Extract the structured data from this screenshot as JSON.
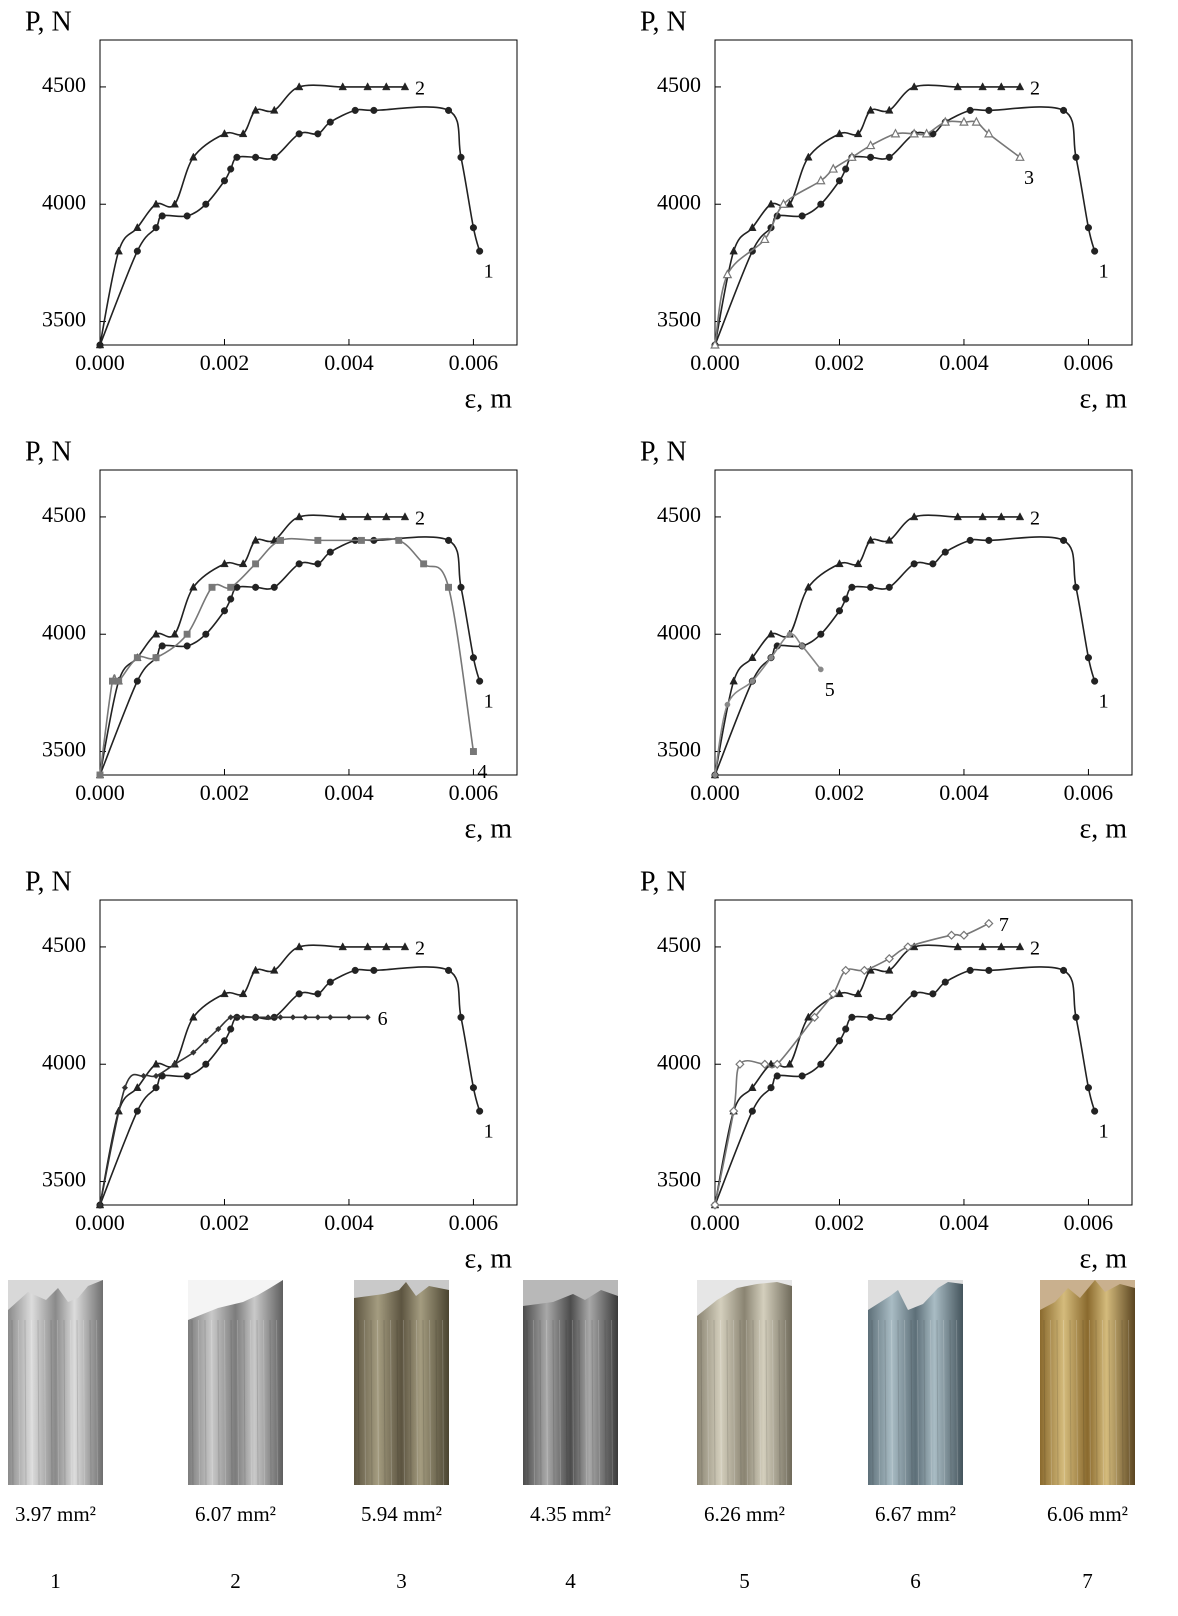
{
  "chart_data": [
    {
      "type": "line",
      "y_label": "P, N",
      "x_label": "ε, m",
      "xlim": [
        0,
        0.0067
      ],
      "xticks": [
        {
          "value": 0,
          "label": "0.000"
        },
        0.002,
        0.004,
        0.006
      ],
      "ylim": [
        3400,
        4700
      ],
      "yticks": [
        3500,
        4000,
        4500
      ],
      "series": [
        {
          "name": "1",
          "color": "#222",
          "marker": "circle",
          "x": [
            0,
            0.0006,
            0.0009,
            0.001,
            0.0014,
            0.0017,
            0.002,
            0.0021,
            0.0022,
            0.0025,
            0.0028,
            0.0032,
            0.0035,
            0.0037,
            0.0041,
            0.0044,
            0.0056,
            0.0058,
            0.006,
            0.0061
          ],
          "values": [
            3400,
            3800,
            3900,
            3950,
            3950,
            4000,
            4100,
            4150,
            4200,
            4200,
            4200,
            4300,
            4300,
            4350,
            4400,
            4400,
            4400,
            4200,
            3900,
            3800
          ]
        },
        {
          "name": "2",
          "color": "#222",
          "marker": "triangle",
          "x": [
            0,
            0.0003,
            0.0006,
            0.0009,
            0.0012,
            0.0015,
            0.002,
            0.0023,
            0.0025,
            0.0028,
            0.0032,
            0.0039,
            0.0043,
            0.0046,
            0.0049
          ],
          "values": [
            3400,
            3800,
            3900,
            4000,
            4000,
            4200,
            4300,
            4300,
            4400,
            4400,
            4500,
            4500,
            4500,
            4500,
            4500
          ]
        }
      ]
    },
    {
      "type": "line",
      "y_label": "P, N",
      "x_label": "ε, m",
      "xlim": [
        0,
        0.0067
      ],
      "xticks": [
        {
          "value": 0,
          "label": "0.000"
        },
        0.002,
        0.004,
        0.006
      ],
      "ylim": [
        3400,
        4700
      ],
      "yticks": [
        3500,
        4000,
        4500
      ],
      "series": [
        {
          "name": "1",
          "color": "#222",
          "marker": "circle",
          "x": [
            0,
            0.0006,
            0.0009,
            0.001,
            0.0014,
            0.0017,
            0.002,
            0.0021,
            0.0022,
            0.0025,
            0.0028,
            0.0032,
            0.0035,
            0.0037,
            0.0041,
            0.0044,
            0.0056,
            0.0058,
            0.006,
            0.0061
          ],
          "values": [
            3400,
            3800,
            3900,
            3950,
            3950,
            4000,
            4100,
            4150,
            4200,
            4200,
            4200,
            4300,
            4300,
            4350,
            4400,
            4400,
            4400,
            4200,
            3900,
            3800
          ]
        },
        {
          "name": "2",
          "color": "#222",
          "marker": "triangle",
          "x": [
            0,
            0.0003,
            0.0006,
            0.0009,
            0.0012,
            0.0015,
            0.002,
            0.0023,
            0.0025,
            0.0028,
            0.0032,
            0.0039,
            0.0043,
            0.0046,
            0.0049
          ],
          "values": [
            3400,
            3800,
            3900,
            4000,
            4000,
            4200,
            4300,
            4300,
            4400,
            4400,
            4500,
            4500,
            4500,
            4500,
            4500
          ]
        },
        {
          "name": "3",
          "color": "#777",
          "marker": "triangle-open",
          "x": [
            0,
            0.0002,
            0.0008,
            0.0011,
            0.0017,
            0.0019,
            0.0022,
            0.0025,
            0.0029,
            0.0032,
            0.0034,
            0.0037,
            0.004,
            0.0042,
            0.0044,
            0.0049
          ],
          "values": [
            3400,
            3700,
            3850,
            4000,
            4100,
            4150,
            4200,
            4250,
            4300,
            4300,
            4300,
            4350,
            4350,
            4350,
            4300,
            4200
          ]
        }
      ]
    },
    {
      "type": "line",
      "y_label": "P, N",
      "x_label": "ε, m",
      "xlim": [
        0,
        0.0067
      ],
      "xticks": [
        {
          "value": 0,
          "label": "0.000"
        },
        0.002,
        0.004,
        0.006
      ],
      "ylim": [
        3400,
        4700
      ],
      "yticks": [
        3500,
        4000,
        4500
      ],
      "series": [
        {
          "name": "1",
          "color": "#222",
          "marker": "circle",
          "x": [
            0,
            0.0006,
            0.0009,
            0.001,
            0.0014,
            0.0017,
            0.002,
            0.0021,
            0.0022,
            0.0025,
            0.0028,
            0.0032,
            0.0035,
            0.0037,
            0.0041,
            0.0044,
            0.0056,
            0.0058,
            0.006,
            0.0061
          ],
          "values": [
            3400,
            3800,
            3900,
            3950,
            3950,
            4000,
            4100,
            4150,
            4200,
            4200,
            4200,
            4300,
            4300,
            4350,
            4400,
            4400,
            4400,
            4200,
            3900,
            3800
          ]
        },
        {
          "name": "2",
          "color": "#222",
          "marker": "triangle",
          "x": [
            0,
            0.0003,
            0.0006,
            0.0009,
            0.0012,
            0.0015,
            0.002,
            0.0023,
            0.0025,
            0.0028,
            0.0032,
            0.0039,
            0.0043,
            0.0046,
            0.0049
          ],
          "values": [
            3400,
            3800,
            3900,
            4000,
            4000,
            4200,
            4300,
            4300,
            4400,
            4400,
            4500,
            4500,
            4500,
            4500,
            4500
          ]
        },
        {
          "name": "4",
          "color": "#777",
          "marker": "square",
          "x": [
            0,
            0.0002,
            0.0003,
            0.0006,
            0.0009,
            0.0014,
            0.0018,
            0.0021,
            0.0025,
            0.0029,
            0.0035,
            0.0042,
            0.0048,
            0.0052,
            0.0056,
            0.006
          ],
          "values": [
            3400,
            3800,
            3800,
            3900,
            3900,
            4000,
            4200,
            4200,
            4300,
            4400,
            4400,
            4400,
            4400,
            4300,
            4200,
            3500
          ]
        }
      ]
    },
    {
      "type": "line",
      "y_label": "P, N",
      "x_label": "ε, m",
      "xlim": [
        0,
        0.0067
      ],
      "xticks": [
        {
          "value": 0,
          "label": "0.000"
        },
        0.002,
        0.004,
        0.006
      ],
      "ylim": [
        3400,
        4700
      ],
      "yticks": [
        3500,
        4000,
        4500
      ],
      "series": [
        {
          "name": "1",
          "color": "#222",
          "marker": "circle",
          "x": [
            0,
            0.0006,
            0.0009,
            0.001,
            0.0014,
            0.0017,
            0.002,
            0.0021,
            0.0022,
            0.0025,
            0.0028,
            0.0032,
            0.0035,
            0.0037,
            0.0041,
            0.0044,
            0.0056,
            0.0058,
            0.006,
            0.0061
          ],
          "values": [
            3400,
            3800,
            3900,
            3950,
            3950,
            4000,
            4100,
            4150,
            4200,
            4200,
            4200,
            4300,
            4300,
            4350,
            4400,
            4400,
            4400,
            4200,
            3900,
            3800
          ]
        },
        {
          "name": "2",
          "color": "#222",
          "marker": "triangle",
          "x": [
            0,
            0.0003,
            0.0006,
            0.0009,
            0.0012,
            0.0015,
            0.002,
            0.0023,
            0.0025,
            0.0028,
            0.0032,
            0.0039,
            0.0043,
            0.0046,
            0.0049
          ],
          "values": [
            3400,
            3800,
            3900,
            4000,
            4000,
            4200,
            4300,
            4300,
            4400,
            4400,
            4500,
            4500,
            4500,
            4500,
            4500
          ]
        },
        {
          "name": "5",
          "color": "#888",
          "marker": "dot",
          "x": [
            0,
            0.0002,
            0.0006,
            0.0009,
            0.0012,
            0.0014,
            0.0017
          ],
          "values": [
            3400,
            3700,
            3800,
            3900,
            4000,
            3950,
            3850
          ]
        }
      ]
    },
    {
      "type": "line",
      "y_label": "P, N",
      "x_label": "ε, m",
      "xlim": [
        0,
        0.0067
      ],
      "xticks": [
        {
          "value": 0,
          "label": "0.000"
        },
        0.002,
        0.004,
        0.006
      ],
      "ylim": [
        3400,
        4700
      ],
      "yticks": [
        3500,
        4000,
        4500
      ],
      "series": [
        {
          "name": "1",
          "color": "#222",
          "marker": "circle",
          "x": [
            0,
            0.0006,
            0.0009,
            0.001,
            0.0014,
            0.0017,
            0.002,
            0.0021,
            0.0022,
            0.0025,
            0.0028,
            0.0032,
            0.0035,
            0.0037,
            0.0041,
            0.0044,
            0.0056,
            0.0058,
            0.006,
            0.0061
          ],
          "values": [
            3400,
            3800,
            3900,
            3950,
            3950,
            4000,
            4100,
            4150,
            4200,
            4200,
            4200,
            4300,
            4300,
            4350,
            4400,
            4400,
            4400,
            4200,
            3900,
            3800
          ]
        },
        {
          "name": "2",
          "color": "#222",
          "marker": "triangle",
          "x": [
            0,
            0.0003,
            0.0006,
            0.0009,
            0.0012,
            0.0015,
            0.002,
            0.0023,
            0.0025,
            0.0028,
            0.0032,
            0.0039,
            0.0043,
            0.0046,
            0.0049
          ],
          "values": [
            3400,
            3800,
            3900,
            4000,
            4000,
            4200,
            4300,
            4300,
            4400,
            4400,
            4500,
            4500,
            4500,
            4500,
            4500
          ]
        },
        {
          "name": "6",
          "color": "#333",
          "marker": "diamond",
          "x": [
            0,
            0.0004,
            0.0007,
            0.0009,
            0.0012,
            0.0015,
            0.0017,
            0.0019,
            0.0021,
            0.0023,
            0.0025,
            0.0027,
            0.0029,
            0.0031,
            0.0033,
            0.0035,
            0.0037,
            0.004,
            0.0043
          ],
          "values": [
            3400,
            3900,
            3950,
            3950,
            4000,
            4050,
            4100,
            4150,
            4200,
            4200,
            4200,
            4200,
            4200,
            4200,
            4200,
            4200,
            4200,
            4200,
            4200
          ]
        }
      ]
    },
    {
      "type": "line",
      "y_label": "P, N",
      "x_label": "ε, m",
      "xlim": [
        0,
        0.0067
      ],
      "xticks": [
        {
          "value": 0,
          "label": "0.000"
        },
        0.002,
        0.004,
        0.006
      ],
      "ylim": [
        3400,
        4700
      ],
      "yticks": [
        3500,
        4000,
        4500
      ],
      "series": [
        {
          "name": "1",
          "color": "#222",
          "marker": "circle",
          "x": [
            0,
            0.0006,
            0.0009,
            0.001,
            0.0014,
            0.0017,
            0.002,
            0.0021,
            0.0022,
            0.0025,
            0.0028,
            0.0032,
            0.0035,
            0.0037,
            0.0041,
            0.0044,
            0.0056,
            0.0058,
            0.006,
            0.0061
          ],
          "values": [
            3400,
            3800,
            3900,
            3950,
            3950,
            4000,
            4100,
            4150,
            4200,
            4200,
            4200,
            4300,
            4300,
            4350,
            4400,
            4400,
            4400,
            4200,
            3900,
            3800
          ]
        },
        {
          "name": "2",
          "color": "#222",
          "marker": "triangle",
          "x": [
            0,
            0.0003,
            0.0006,
            0.0009,
            0.0012,
            0.0015,
            0.002,
            0.0023,
            0.0025,
            0.0028,
            0.0032,
            0.0039,
            0.0043,
            0.0046,
            0.0049
          ],
          "values": [
            3400,
            3800,
            3900,
            4000,
            4000,
            4200,
            4300,
            4300,
            4400,
            4400,
            4500,
            4500,
            4500,
            4500,
            4500
          ]
        },
        {
          "name": "7",
          "color": "#777",
          "marker": "diamond-open",
          "x": [
            0,
            0.0003,
            0.0004,
            0.0008,
            0.001,
            0.0016,
            0.0019,
            0.0021,
            0.0024,
            0.0028,
            0.0031,
            0.0038,
            0.004,
            0.0044
          ],
          "values": [
            3400,
            3800,
            4000,
            4000,
            4000,
            4200,
            4300,
            4400,
            4400,
            4450,
            4500,
            4550,
            4550,
            4600
          ]
        }
      ]
    }
  ],
  "specimens": [
    {
      "area": "3.97 mm²",
      "label": "1"
    },
    {
      "area": "6.07 mm²",
      "label": "2"
    },
    {
      "area": "5.94 mm²",
      "label": "3"
    },
    {
      "area": "4.35 mm²",
      "label": "4"
    },
    {
      "area": "6.26 mm²",
      "label": "5"
    },
    {
      "area": "6.67 mm²",
      "label": "6"
    },
    {
      "area": "6.06 mm²",
      "label": "7"
    }
  ]
}
